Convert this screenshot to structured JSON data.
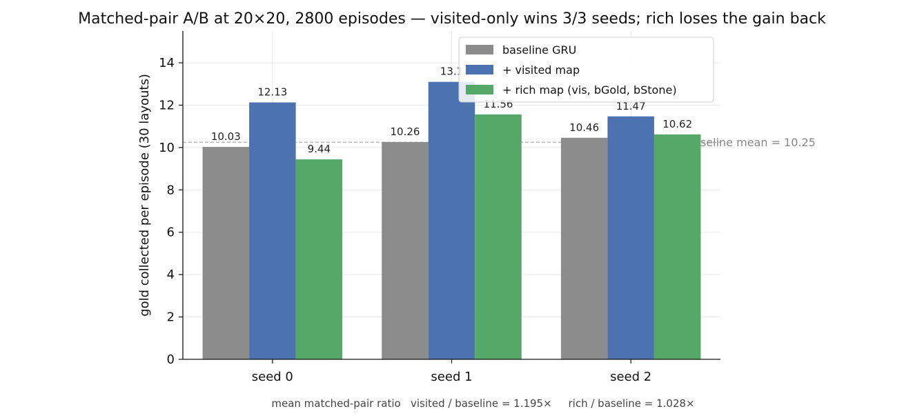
{
  "chart_data": {
    "type": "bar",
    "title": "Matched-pair A/B at 20×20, 2800 episodes — visited-only wins 3/3 seeds; rich loses the gain back",
    "xlabel": "",
    "ylabel": "gold collected per episode (30 layouts)",
    "categories": [
      "seed 0",
      "seed 1",
      "seed 2"
    ],
    "ylim": [
      0,
      15.5
    ],
    "yticks": [
      0,
      2,
      4,
      6,
      8,
      10,
      12,
      14
    ],
    "grid": true,
    "legend_position": "top-right",
    "series": [
      {
        "name": "baseline GRU",
        "color": "#8c8c8c",
        "values": [
          10.03,
          10.26,
          10.46
        ],
        "labels": [
          "10.03",
          "10.26",
          "10.46"
        ]
      },
      {
        "name": "+ visited map",
        "color": "#4c72b0",
        "values": [
          12.13,
          13.1,
          11.47
        ],
        "labels": [
          "12.13",
          "13.1",
          "11.47"
        ]
      },
      {
        "name": "+ rich map (vis, bGold, bStone)",
        "color": "#55a868",
        "values": [
          9.44,
          11.56,
          10.62
        ],
        "labels": [
          "9.44",
          "11.56",
          "10.62"
        ]
      }
    ],
    "reference_line": {
      "value": 10.25,
      "label": "baseline mean = 10.25",
      "color": "#aaaaaa"
    },
    "footnote": "mean matched-pair ratio   visited / baseline = 1.195×     rich / baseline = 1.028×"
  }
}
